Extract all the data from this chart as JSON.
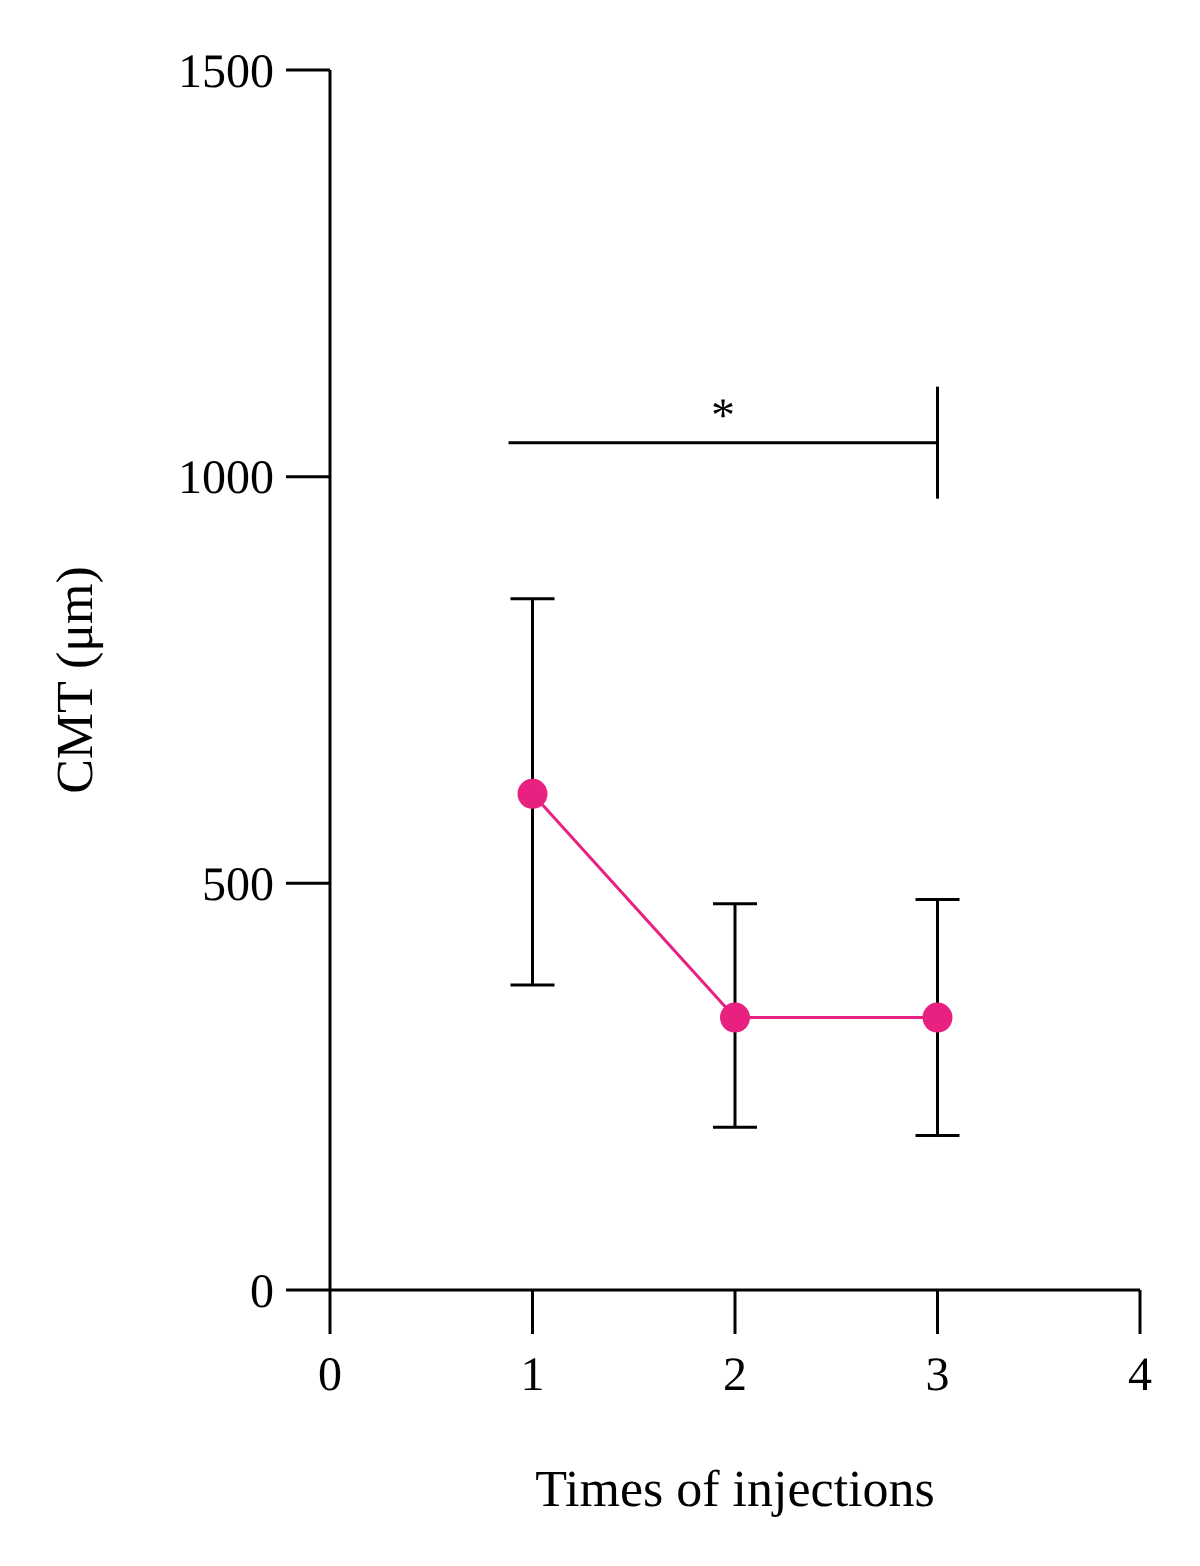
{
  "chart_data": {
    "type": "line",
    "xlabel": "Times of injections",
    "ylabel": "CMT (μm)",
    "x": [
      1,
      2,
      3
    ],
    "series": [
      {
        "color": "#e8207f",
        "values": [
          610,
          335,
          335
        ],
        "errors": [
          [
            375,
            850
          ],
          [
            200,
            475
          ],
          [
            190,
            480
          ]
        ]
      }
    ],
    "xlim": [
      0,
      4
    ],
    "xticks": [
      0,
      1,
      2,
      3,
      4
    ],
    "ylim": [
      0,
      1500
    ],
    "yticks": [
      0,
      500,
      1000,
      1500
    ],
    "marker": "circle",
    "line_style": "solid",
    "grid": false,
    "annotations": [
      "*"
    ]
  }
}
